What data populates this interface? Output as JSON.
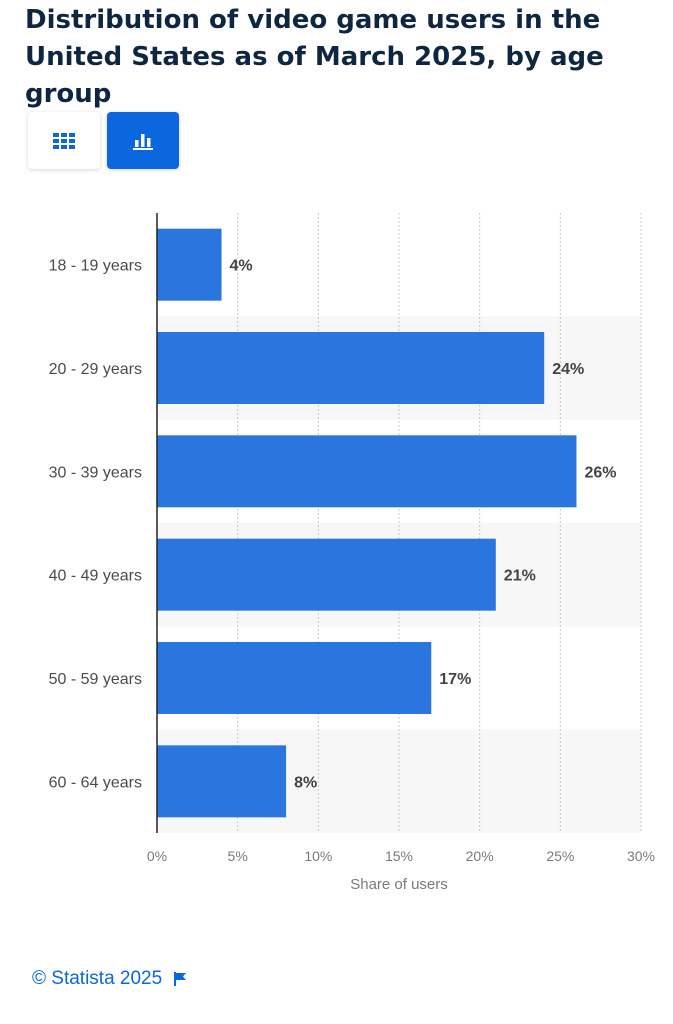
{
  "chart_data": {
    "type": "bar",
    "orientation": "horizontal",
    "title": "Distribution of video game users in the United States as of March 2025, by age group",
    "categories": [
      "18 - 19 years",
      "20 - 29 years",
      "30 - 39 years",
      "40 - 49 years",
      "50 - 59 years",
      "60 - 64 years"
    ],
    "values": [
      4,
      24,
      26,
      21,
      17,
      8
    ],
    "value_labels": [
      "4%",
      "24%",
      "26%",
      "21%",
      "17%",
      "8%"
    ],
    "xlabel": "Share of users",
    "ylabel": "",
    "xlim": [
      0,
      30
    ],
    "x_ticks": [
      0,
      5,
      10,
      15,
      20,
      25,
      30
    ],
    "x_tick_labels": [
      "0%",
      "5%",
      "10%",
      "15%",
      "20%",
      "25%",
      "30%"
    ],
    "grid": true,
    "legend": "none",
    "bar_color": "#2b76de",
    "band_color": "#f7f7f7"
  },
  "controls": {
    "table_view_icon": "grid-icon",
    "chart_view_icon": "bar-chart-icon",
    "active_view": "chart",
    "accent_color": "#0b67de"
  },
  "footer": {
    "copyright": "© Statista 2025",
    "flag_icon": "flag-icon"
  }
}
